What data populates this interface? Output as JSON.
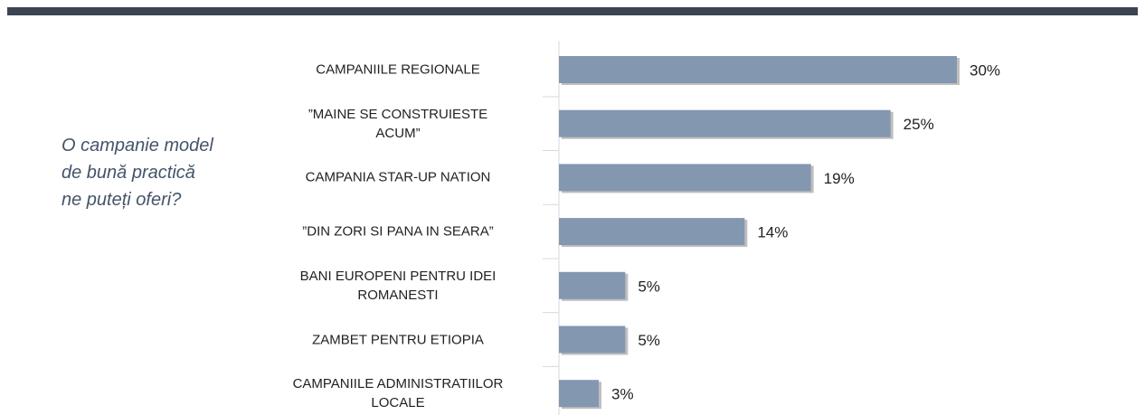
{
  "chart_data": {
    "type": "bar",
    "orientation": "horizontal",
    "annotation": "O campanie model\nde bună practică\nne puteți oferi?",
    "categories": [
      "CAMPANIILE REGIONALE",
      "”MAINE SE CONSTRUIESTE\nACUM”",
      "CAMPANIA STAR-UP NATION",
      "”DIN ZORI SI PANA IN SEARA”",
      "BANI EUROPENI PENTRU IDEI\nROMANESTI",
      "ZAMBET PENTRU ETIOPIA",
      "CAMPANIILE ADMINISTRATIILOR\nLOCALE"
    ],
    "values": [
      30,
      25,
      19,
      14,
      5,
      5,
      3
    ],
    "value_labels": [
      "30%",
      "25%",
      "19%",
      "14%",
      "5%",
      "5%",
      "3%"
    ],
    "color": "#8497b0"
  }
}
